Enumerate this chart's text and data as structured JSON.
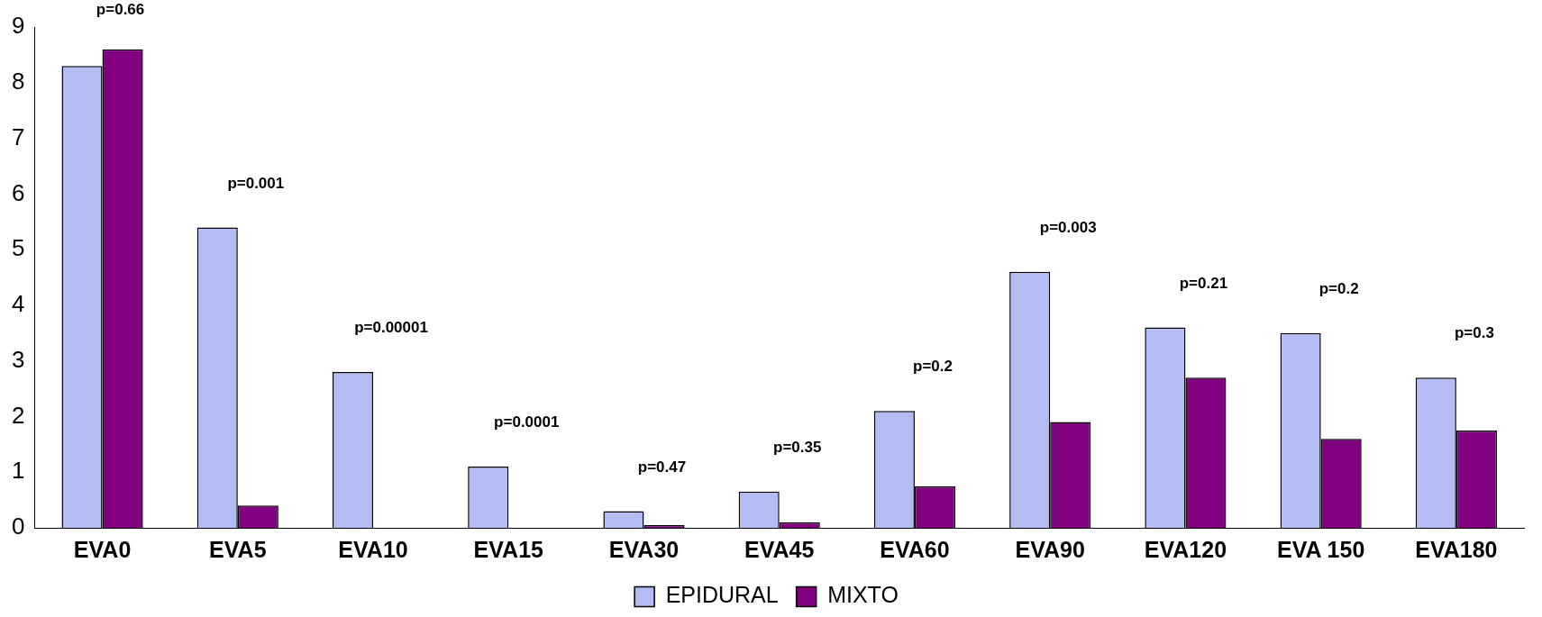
{
  "chart_data": {
    "type": "bar",
    "categories": [
      "EVA0",
      "EVA5",
      "EVA10",
      "EVA15",
      "EVA30",
      "EVA45",
      "EVA60",
      "EVA90",
      "EVA120",
      "EVA 150",
      "EVA180"
    ],
    "series": [
      {
        "name": "EPIDURAL",
        "color": "#b4bcf4",
        "values": [
          8.3,
          5.4,
          2.8,
          1.1,
          0.3,
          0.65,
          2.1,
          4.6,
          3.6,
          3.5,
          2.7
        ]
      },
      {
        "name": "MIXTO",
        "color": "#800080",
        "values": [
          8.6,
          0.4,
          0,
          0,
          0.05,
          0.1,
          0.75,
          1.9,
          2.7,
          1.6,
          1.75
        ]
      }
    ],
    "ylim": [
      0,
      9
    ],
    "yticks": [
      0,
      1,
      2,
      3,
      4,
      5,
      6,
      7,
      8,
      9
    ],
    "grid": false,
    "legend": "bottom",
    "annotations": [
      "p=0.66",
      "p=0.001",
      "p=0.00001",
      "p=0.0001",
      "p=0.47",
      "p=0.35",
      "p=0.2",
      "p=0.003",
      "p=0.21",
      "p=0.2",
      "p=0.3"
    ]
  }
}
